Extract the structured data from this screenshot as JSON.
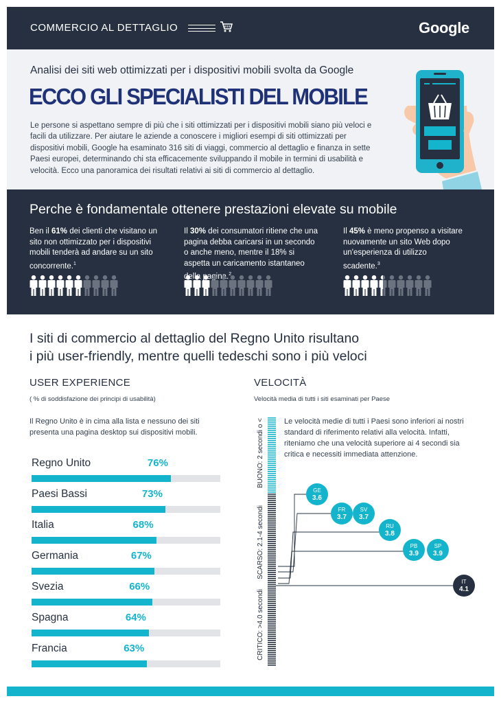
{
  "header": {
    "category": "COMMERCIO AL DETTAGLIO",
    "logo": "Google",
    "cart_icon": "cart-icon"
  },
  "intro": {
    "subtitle": "Analisi dei siti web ottimizzati per i dispositivi mobili svolta da Google",
    "title": "ECCO GLI SPECIALISTI DEL MOBILE",
    "body": "Le persone si aspettano sempre di più che i siti ottimizzati per i dispositivi mobili siano più veloci e facili da utilizzare. Per aiutare le aziende a conoscere i migliori esempi di siti ottimizzati per dispositivi mobili, Google ha esaminato 316 siti di viaggi, commercio al dettaglio e finanza in sette Paesi europei, determinando chi sta efficacemente sviluppando il mobile in termini di usabilità e velocità. Ecco una panoramica dei risultati relativi ai siti di commercio al dettaglio."
  },
  "why": {
    "title": "Perche è fondamentale ottenere prestazioni elevate su mobile",
    "stats": [
      {
        "pre": "Ben il ",
        "bold": "61%",
        "post": " dei clienti che visitano un sito non ottimizzato per i dispositivi mobili tenderà ad andare su un sito concorrente.",
        "note": "1",
        "filled": 6,
        "total": 10
      },
      {
        "pre": "Il ",
        "bold": "30%",
        "post": " dei consumatori ritiene che una pagina debba caricarsi in un secondo o anche meno, mentre il 18% si aspetta un caricamento istantaneo della pagina.",
        "note": "2",
        "filled": 3,
        "total": 10
      },
      {
        "pre": "Il ",
        "bold": "45%",
        "post": " è meno propenso a visitare nuovamente un sito Web dopo un'esperienza di utilizzo scadente.",
        "note": "3",
        "filled": 4.5,
        "total": 10
      }
    ]
  },
  "results": {
    "title_line1": "I siti di commercio al dettaglio del Regno Unito risultano",
    "title_line2": "i più user-friendly, mentre quelli tedeschi sono i più veloci"
  },
  "ux": {
    "title": "USER EXPERIENCE",
    "subtitle": "( % di soddisfazione dei principi di usabilità)",
    "note": "Il Regno Unito è in cima alla lista e nessuno dei siti presenta una pagina desktop sui dispositivi mobili.",
    "rows": [
      {
        "country": "Regno Unito",
        "pct_label": "76%",
        "value": 76
      },
      {
        "country": "Paesi Bassi",
        "pct_label": "73%",
        "value": 73
      },
      {
        "country": "Italia",
        "pct_label": "68%",
        "value": 68
      },
      {
        "country": "Germania",
        "pct_label": "67%",
        "value": 67
      },
      {
        "country": "Svezia",
        "pct_label": "66%",
        "value": 66
      },
      {
        "country": "Spagna",
        "pct_label": "64%",
        "value": 64
      },
      {
        "country": "Francia",
        "pct_label": "63%",
        "value": 63
      }
    ]
  },
  "speed": {
    "title": "VELOCITÀ",
    "subtitle": "Velocità media di tutti i siti esaminati per Paese",
    "note": "Le velocità medie di tutti i Paesi sono inferiori ai nostri standard di riferimento relativi alla velocità. Infatti, riteniamo che una velocità superiore ai 4 secondi sia critica e necessiti immediata attenzione.",
    "zones": [
      {
        "label": "BUONO: 2 secondi o <",
        "color": "#14b5cc"
      },
      {
        "label": "SCARSO: 2.1-4 secondi",
        "color": "#263040"
      },
      {
        "label": "CRITICO: >4.0 secondi",
        "color": "#263040"
      }
    ],
    "countries": [
      {
        "code": "GE",
        "value": "3.6",
        "dark": false
      },
      {
        "code": "FR",
        "value": "3.7",
        "dark": false
      },
      {
        "code": "SV",
        "value": "3.7",
        "dark": false
      },
      {
        "code": "RU",
        "value": "3.8",
        "dark": false
      },
      {
        "code": "PB",
        "value": "3.9",
        "dark": false
      },
      {
        "code": "SP",
        "value": "3.9",
        "dark": false
      },
      {
        "code": "IT",
        "value": "4.1",
        "dark": true
      }
    ]
  },
  "colors": {
    "navy": "#263040",
    "teal": "#14b5cc",
    "title_blue": "#1f3278",
    "light_bg": "#f0f2f5",
    "grey_track": "#e1e3e6"
  }
}
